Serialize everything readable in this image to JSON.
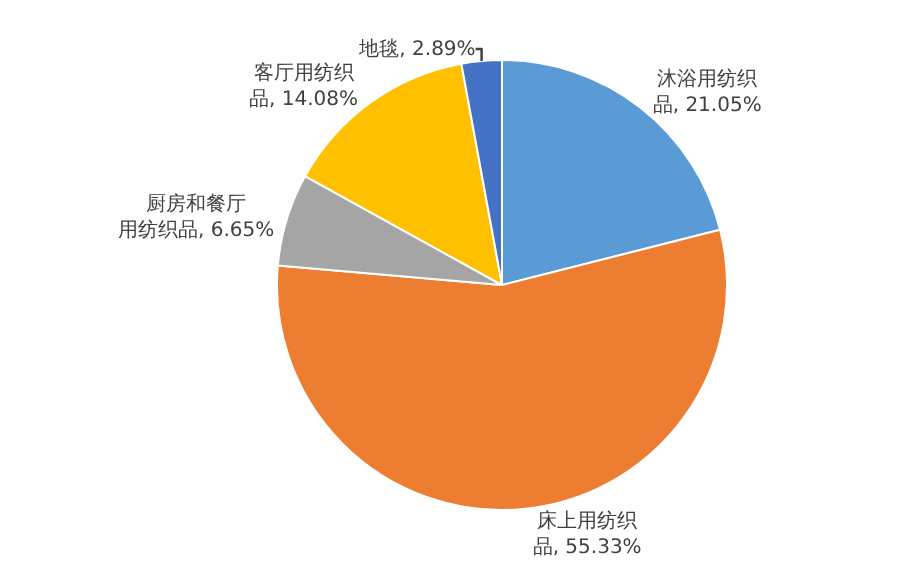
{
  "chart_data": {
    "type": "pie",
    "categories": [
      "沐浴用纺织品",
      "床上用纺织品",
      "厨房和餐厅用纺织品",
      "客厅用纺织品",
      "地毯"
    ],
    "values": [
      21.05,
      55.33,
      6.65,
      14.08,
      2.89
    ],
    "colors": [
      "#5b9bd5",
      "#ed7d31",
      "#a5a5a5",
      "#ffc000",
      "#4472c4"
    ],
    "value_labels": [
      "21.05%",
      "55.33%",
      "6.65%",
      "14.08%",
      "2.89%"
    ],
    "legend": false
  }
}
